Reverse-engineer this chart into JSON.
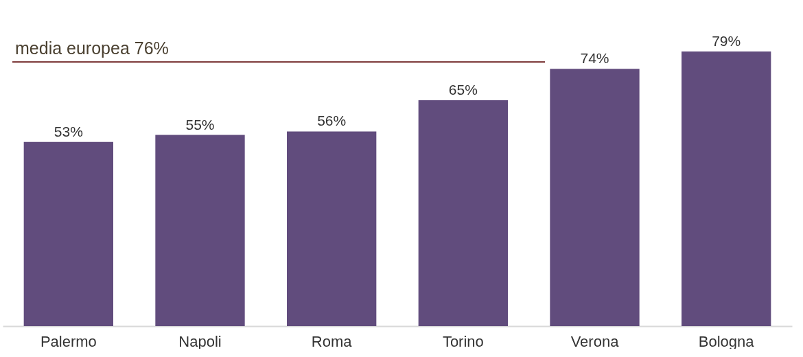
{
  "chart_data": {
    "type": "bar",
    "categories": [
      "Palermo",
      "Napoli",
      "Roma",
      "Torino",
      "Verona",
      "Bologna"
    ],
    "values": [
      53,
      55,
      56,
      65,
      74,
      79
    ],
    "value_labels": [
      "53%",
      "55%",
      "56%",
      "65%",
      "74%",
      "79%"
    ],
    "color": "#614c7d",
    "tick_labels": "x",
    "ref_lines": [
      {
        "axis": "y",
        "value": 76,
        "label": "media europea 76%",
        "color": "#6b1f1f"
      }
    ]
  }
}
